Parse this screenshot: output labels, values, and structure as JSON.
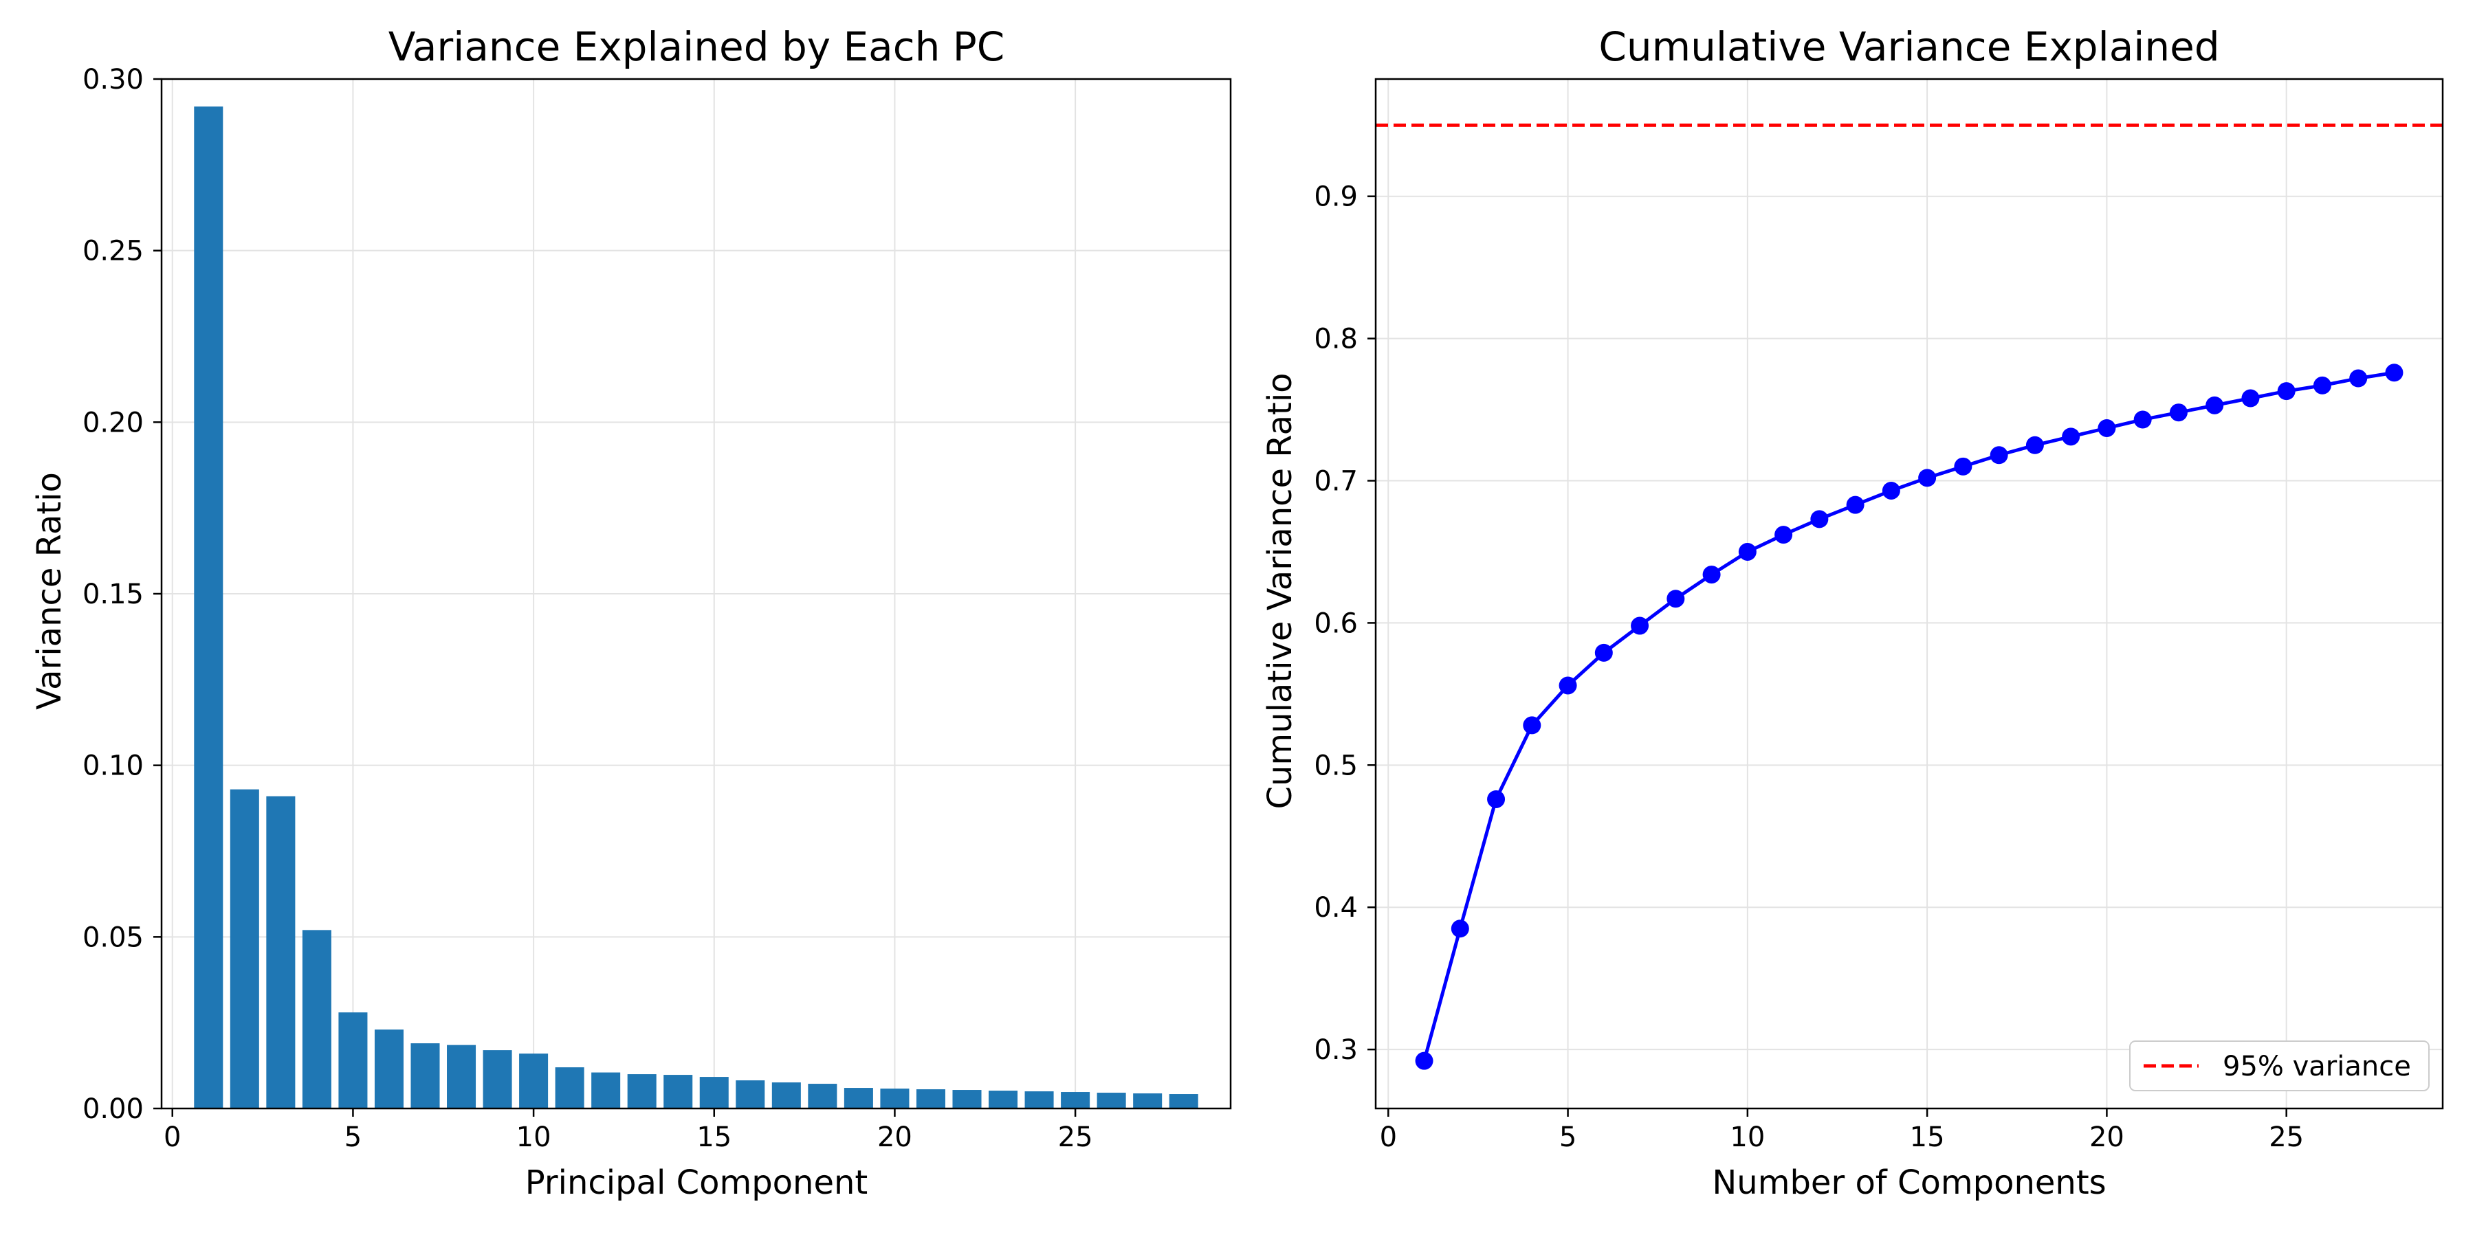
{
  "chart_data": [
    {
      "type": "bar",
      "title": "Variance Explained by Each PC",
      "xlabel": "Principal Component",
      "ylabel": "Variance Ratio",
      "xlim": [
        -0.3,
        29.3
      ],
      "ylim": [
        0,
        0.3
      ],
      "xticks": [
        0,
        5,
        10,
        15,
        20,
        25
      ],
      "xtick_labels": [
        "0",
        "5",
        "10",
        "15",
        "20",
        "25"
      ],
      "yticks": [
        0,
        0.05,
        0.1,
        0.15,
        0.2,
        0.25,
        0.3
      ],
      "ytick_labels": [
        "0.00",
        "0.05",
        "0.10",
        "0.15",
        "0.20",
        "0.25",
        "0.30"
      ],
      "grid": true,
      "color": "#1f77b4",
      "categories": [
        1,
        2,
        3,
        4,
        5,
        6,
        7,
        8,
        9,
        10,
        11,
        12,
        13,
        14,
        15,
        16,
        17,
        18,
        19,
        20,
        21,
        22,
        23,
        24,
        25,
        26,
        27,
        28
      ],
      "values": [
        0.292,
        0.093,
        0.091,
        0.052,
        0.028,
        0.023,
        0.019,
        0.0185,
        0.017,
        0.016,
        0.012,
        0.0105,
        0.01,
        0.0098,
        0.0092,
        0.0082,
        0.0076,
        0.0072,
        0.006,
        0.0058,
        0.0056,
        0.0054,
        0.0052,
        0.005,
        0.0048,
        0.0046,
        0.0044,
        0.0042
      ]
    },
    {
      "type": "line",
      "title": "Cumulative Variance Explained",
      "xlabel": "Number of Components",
      "ylabel": "Cumulative Variance Ratio",
      "xlim": [
        -0.35,
        29.35
      ],
      "ylim": [
        0.2585,
        0.9825
      ],
      "xticks": [
        0,
        5,
        10,
        15,
        20,
        25
      ],
      "xtick_labels": [
        "0",
        "5",
        "10",
        "15",
        "20",
        "25"
      ],
      "yticks": [
        0.3,
        0.4,
        0.5,
        0.6,
        0.7,
        0.8,
        0.9
      ],
      "ytick_labels": [
        "0.3",
        "0.4",
        "0.5",
        "0.6",
        "0.7",
        "0.8",
        "0.9"
      ],
      "grid": true,
      "color": "#0000ff",
      "x": [
        1,
        2,
        3,
        4,
        5,
        6,
        7,
        8,
        9,
        10,
        11,
        12,
        13,
        14,
        15,
        16,
        17,
        18,
        19,
        20,
        21,
        22,
        23,
        24,
        25,
        26,
        27,
        28
      ],
      "y": [
        0.292,
        0.385,
        0.476,
        0.528,
        0.556,
        0.579,
        0.598,
        0.617,
        0.634,
        0.65,
        0.662,
        0.673,
        0.683,
        0.693,
        0.702,
        0.71,
        0.718,
        0.725,
        0.731,
        0.737,
        0.743,
        0.748,
        0.753,
        0.758,
        0.763,
        0.767,
        0.772,
        0.776
      ],
      "hline": {
        "y": 0.95,
        "color": "#ff0000",
        "style": "dashed",
        "label": "95% variance"
      },
      "legend_position": "lower-right"
    }
  ]
}
